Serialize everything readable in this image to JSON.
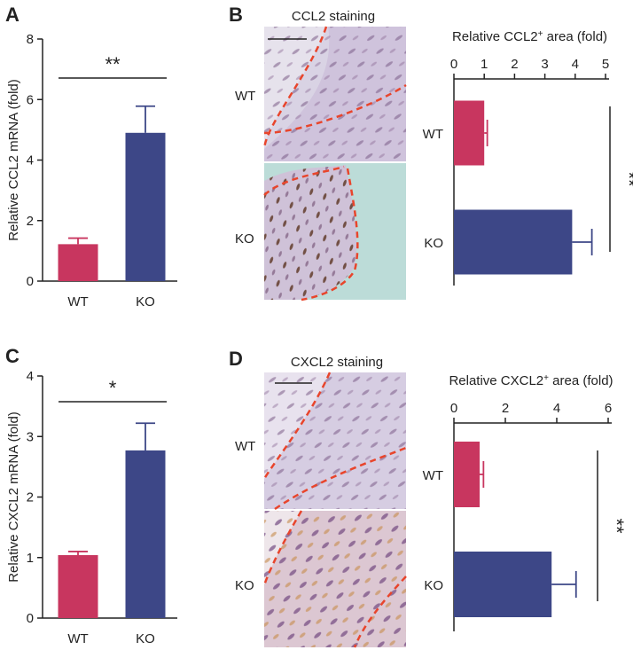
{
  "colors": {
    "wt": "#c8365f",
    "ko": "#3d4787",
    "axis": "#222222",
    "dash": "#e8452c"
  },
  "panels": {
    "A": {
      "letter": "A"
    },
    "B": {
      "letter": "B",
      "staining_title": "CCL2 staining",
      "image_labels": [
        "WT",
        "KO"
      ]
    },
    "C": {
      "letter": "C"
    },
    "D": {
      "letter": "D",
      "staining_title": "CXCL2 staining",
      "image_labels": [
        "WT",
        "KO"
      ]
    }
  },
  "chart_data": [
    {
      "id": "A",
      "type": "bar",
      "orientation": "vertical",
      "categories": [
        "WT",
        "KO"
      ],
      "values": [
        1.22,
        4.9
      ],
      "errors": [
        0.2,
        0.88
      ],
      "ylabel": "Relative CCL2 mRNA (fold)",
      "ylim": [
        0,
        8
      ],
      "yticks": [
        "0",
        "2",
        "4",
        "6",
        "8"
      ],
      "significance": "**"
    },
    {
      "id": "B",
      "type": "bar",
      "orientation": "horizontal",
      "categories": [
        "WT",
        "KO"
      ],
      "values": [
        1.0,
        3.9
      ],
      "errors": [
        0.1,
        0.65
      ],
      "xlabel": "Relative CCL2",
      "xlabel_sup": "+",
      "xlabel_suffix": " area (fold)",
      "xlim": [
        0,
        5
      ],
      "xticks": [
        "0",
        "1",
        "2",
        "3",
        "4",
        "5"
      ],
      "significance": "**"
    },
    {
      "id": "C",
      "type": "bar",
      "orientation": "vertical",
      "categories": [
        "WT",
        "KO"
      ],
      "values": [
        1.04,
        2.77
      ],
      "errors": [
        0.06,
        0.45
      ],
      "ylabel": "Relative CXCL2 mRNA (fold)",
      "ylim": [
        0,
        4
      ],
      "yticks": [
        "0",
        "1",
        "2",
        "3",
        "4"
      ],
      "significance": "*"
    },
    {
      "id": "D",
      "type": "bar",
      "orientation": "horizontal",
      "categories": [
        "WT",
        "KO"
      ],
      "values": [
        1.0,
        3.8
      ],
      "errors": [
        0.15,
        0.95
      ],
      "xlabel": "Relative CXCL2",
      "xlabel_sup": "+",
      "xlabel_suffix": " area (fold)",
      "xlim": [
        0,
        6
      ],
      "xticks": [
        "0",
        "2",
        "4",
        "6"
      ],
      "significance": "**"
    }
  ]
}
